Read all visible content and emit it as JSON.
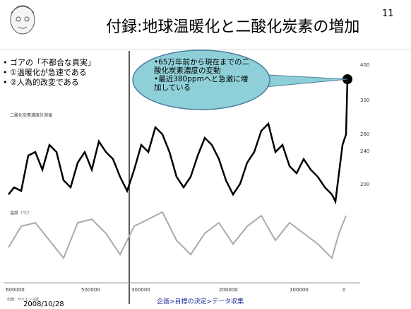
{
  "header": {
    "title": "付録:地球温暖化と二酸化炭素の増加",
    "page_number": "11"
  },
  "bullets": [
    "ゴアの「不都合な真実」",
    "①温暖化が急速である",
    "②人為的改変である"
  ],
  "callout": {
    "lines": [
      "•65万年前から現在までの二酸化炭素濃度の変動",
      "•最近380ppmへと急激に増加している"
    ]
  },
  "figure": {
    "co2_label": "二酸化炭素濃度計測値",
    "temp_label": "温度（℃）",
    "source": "出典：サイエンス誌",
    "right_ticks": [
      "400",
      "300",
      "260",
      "240",
      "200"
    ],
    "x_ticks": [
      "600000",
      "500000",
      "300000",
      "200000",
      "100000",
      "0"
    ]
  },
  "footer": {
    "date": "2008/10/28",
    "breadcrumb": "企画>目標の決定>データ収集"
  }
}
